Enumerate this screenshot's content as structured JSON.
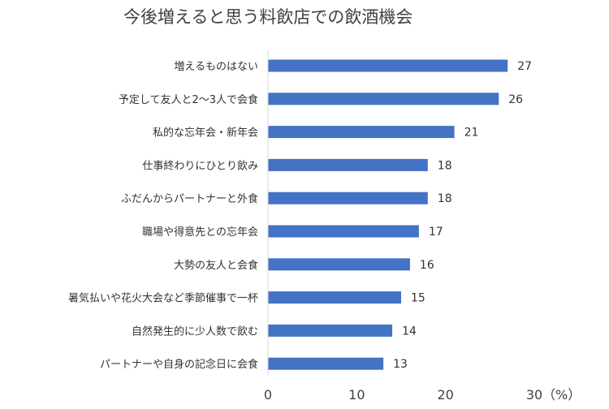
{
  "chart_data": {
    "type": "bar",
    "orientation": "horizontal",
    "title": "今後増えると思う料飲店での飲酒機会",
    "categories": [
      "増えるものはない",
      "予定して友人と2～3人で会食",
      "私的な忘年会・新年会",
      "仕事終わりにひとり飲み",
      "ふだんからパートナーと外食",
      "職場や得意先との忘年会",
      "大勢の友人と会食",
      "暑気払いや花火大会など季節催事で一杯",
      "自然発生的に少人数で飲む",
      "パートナーや自身の記念日に会食"
    ],
    "values": [
      27,
      26,
      21,
      18,
      18,
      17,
      16,
      15,
      14,
      13
    ],
    "xlim": [
      0,
      30
    ],
    "xticks": [
      "0",
      "10",
      "20",
      "30"
    ],
    "unit": "（%）",
    "bar_color": "#4472C4",
    "grid": false
  }
}
